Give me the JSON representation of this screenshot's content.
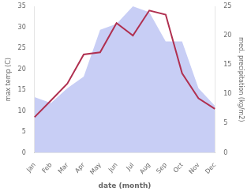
{
  "chart_data": {
    "type": "line",
    "xlabel": "date (month)",
    "ylabel": "max temp (C)",
    "y2label": "med. precipitation (kg/m2)",
    "categories": [
      "Jan",
      "Feb",
      "Mar",
      "Apr",
      "May",
      "Jun",
      "Jul",
      "Aug",
      "Sep",
      "Oct",
      "Nov",
      "Dec"
    ],
    "series": [
      {
        "type": "area",
        "color": "#c8cef5",
        "axis": "y2",
        "values": [
          9.5,
          8.5,
          11.0,
          13.0,
          21.0,
          22.0,
          25.0,
          24.0,
          19.0,
          19.0,
          11.0,
          8.0
        ]
      },
      {
        "type": "line",
        "color": "#b03050",
        "values": [
          8.5,
          12.5,
          16.5,
          23.5,
          24.0,
          31.0,
          28.0,
          34.0,
          33.0,
          19.0,
          13.0,
          10.5
        ]
      }
    ],
    "ylim": [
      0,
      35
    ],
    "yticks": [
      0,
      5,
      10,
      15,
      20,
      25,
      30,
      35
    ],
    "y2lim": [
      0,
      25
    ],
    "y2ticks": [
      0,
      5,
      10,
      15,
      20,
      25
    ],
    "grid": false
  }
}
